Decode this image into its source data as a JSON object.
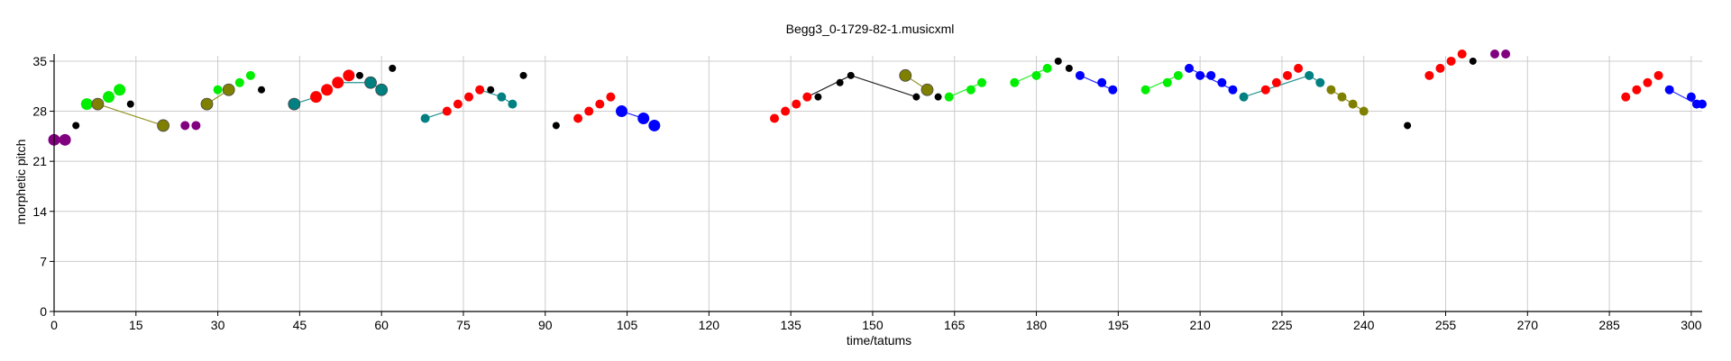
{
  "chart_data": {
    "type": "scatter",
    "title": "Begg3_0-1729-82-1.musicxml",
    "xlabel": "time/tatums",
    "ylabel": "morphetic pitch",
    "xlim": [
      0,
      302
    ],
    "ylim": [
      0,
      36
    ],
    "xticks": [
      0,
      15,
      30,
      45,
      60,
      75,
      90,
      105,
      120,
      135,
      150,
      165,
      180,
      195,
      210,
      225,
      240,
      255,
      270,
      285,
      300
    ],
    "yticks": [
      0,
      7,
      14,
      21,
      28,
      35
    ],
    "grid": true,
    "colors": {
      "purple": "#800080",
      "green": "#00ee00",
      "black": "#000000",
      "olive": "#808000",
      "red": "#ff0000",
      "teal": "#008080",
      "blue": "#0000ff"
    },
    "notes": [
      {
        "x": 0,
        "y": 24,
        "color": "purple",
        "size": "large"
      },
      {
        "x": 2,
        "y": 24,
        "color": "purple",
        "size": "large"
      },
      {
        "x": 4,
        "y": 26,
        "color": "black",
        "size": "small"
      },
      {
        "x": 6,
        "y": 29,
        "color": "green",
        "size": "large"
      },
      {
        "x": 8,
        "y": 29,
        "color": "olive",
        "size": "large"
      },
      {
        "x": 10,
        "y": 30,
        "color": "green",
        "size": "large"
      },
      {
        "x": 12,
        "y": 31,
        "color": "green",
        "size": "large"
      },
      {
        "x": 14,
        "y": 29,
        "color": "black",
        "size": "small"
      },
      {
        "x": 20,
        "y": 26,
        "color": "olive",
        "size": "large"
      },
      {
        "x": 24,
        "y": 26,
        "color": "purple",
        "size": "medium"
      },
      {
        "x": 26,
        "y": 26,
        "color": "purple",
        "size": "medium"
      },
      {
        "x": 28,
        "y": 29,
        "color": "olive",
        "size": "large"
      },
      {
        "x": 30,
        "y": 31,
        "color": "green",
        "size": "medium"
      },
      {
        "x": 32,
        "y": 31,
        "color": "olive",
        "size": "large"
      },
      {
        "x": 34,
        "y": 32,
        "color": "green",
        "size": "medium"
      },
      {
        "x": 36,
        "y": 33,
        "color": "green",
        "size": "medium"
      },
      {
        "x": 38,
        "y": 31,
        "color": "black",
        "size": "small"
      },
      {
        "x": 44,
        "y": 29,
        "color": "teal",
        "size": "large"
      },
      {
        "x": 48,
        "y": 30,
        "color": "red",
        "size": "large"
      },
      {
        "x": 50,
        "y": 31,
        "color": "red",
        "size": "large"
      },
      {
        "x": 52,
        "y": 32,
        "color": "red",
        "size": "large"
      },
      {
        "x": 54,
        "y": 33,
        "color": "red",
        "size": "large"
      },
      {
        "x": 56,
        "y": 33,
        "color": "black",
        "size": "small"
      },
      {
        "x": 58,
        "y": 32,
        "color": "teal",
        "size": "large"
      },
      {
        "x": 60,
        "y": 31,
        "color": "teal",
        "size": "large"
      },
      {
        "x": 62,
        "y": 34,
        "color": "black",
        "size": "small"
      },
      {
        "x": 68,
        "y": 27,
        "color": "teal",
        "size": "medium"
      },
      {
        "x": 72,
        "y": 28,
        "color": "red",
        "size": "medium"
      },
      {
        "x": 74,
        "y": 29,
        "color": "red",
        "size": "medium"
      },
      {
        "x": 76,
        "y": 30,
        "color": "red",
        "size": "medium"
      },
      {
        "x": 78,
        "y": 31,
        "color": "red",
        "size": "medium"
      },
      {
        "x": 80,
        "y": 31,
        "color": "black",
        "size": "small"
      },
      {
        "x": 82,
        "y": 30,
        "color": "teal",
        "size": "medium"
      },
      {
        "x": 84,
        "y": 29,
        "color": "teal",
        "size": "medium"
      },
      {
        "x": 86,
        "y": 33,
        "color": "black",
        "size": "small"
      },
      {
        "x": 92,
        "y": 26,
        "color": "black",
        "size": "small"
      },
      {
        "x": 96,
        "y": 27,
        "color": "red",
        "size": "medium"
      },
      {
        "x": 98,
        "y": 28,
        "color": "red",
        "size": "medium"
      },
      {
        "x": 100,
        "y": 29,
        "color": "red",
        "size": "medium"
      },
      {
        "x": 102,
        "y": 30,
        "color": "red",
        "size": "medium"
      },
      {
        "x": 104,
        "y": 28,
        "color": "blue",
        "size": "large"
      },
      {
        "x": 108,
        "y": 27,
        "color": "blue",
        "size": "large"
      },
      {
        "x": 110,
        "y": 26,
        "color": "blue",
        "size": "large"
      },
      {
        "x": 132,
        "y": 27,
        "color": "red",
        "size": "medium"
      },
      {
        "x": 134,
        "y": 28,
        "color": "red",
        "size": "medium"
      },
      {
        "x": 136,
        "y": 29,
        "color": "red",
        "size": "medium"
      },
      {
        "x": 138,
        "y": 30,
        "color": "red",
        "size": "medium"
      },
      {
        "x": 140,
        "y": 30,
        "color": "black",
        "size": "small"
      },
      {
        "x": 144,
        "y": 32,
        "color": "black",
        "size": "small"
      },
      {
        "x": 146,
        "y": 33,
        "color": "black",
        "size": "small"
      },
      {
        "x": 156,
        "y": 33,
        "color": "olive",
        "size": "large"
      },
      {
        "x": 158,
        "y": 30,
        "color": "black",
        "size": "small"
      },
      {
        "x": 160,
        "y": 31,
        "color": "olive",
        "size": "large"
      },
      {
        "x": 162,
        "y": 30,
        "color": "black",
        "size": "small"
      },
      {
        "x": 164,
        "y": 30,
        "color": "green",
        "size": "medium"
      },
      {
        "x": 168,
        "y": 31,
        "color": "green",
        "size": "medium"
      },
      {
        "x": 170,
        "y": 32,
        "color": "green",
        "size": "medium"
      },
      {
        "x": 176,
        "y": 32,
        "color": "green",
        "size": "medium"
      },
      {
        "x": 180,
        "y": 33,
        "color": "green",
        "size": "medium"
      },
      {
        "x": 182,
        "y": 34,
        "color": "green",
        "size": "medium"
      },
      {
        "x": 184,
        "y": 35,
        "color": "black",
        "size": "small"
      },
      {
        "x": 186,
        "y": 34,
        "color": "black",
        "size": "small"
      },
      {
        "x": 188,
        "y": 33,
        "color": "blue",
        "size": "medium"
      },
      {
        "x": 192,
        "y": 32,
        "color": "blue",
        "size": "medium"
      },
      {
        "x": 194,
        "y": 31,
        "color": "blue",
        "size": "medium"
      },
      {
        "x": 200,
        "y": 31,
        "color": "green",
        "size": "medium"
      },
      {
        "x": 204,
        "y": 32,
        "color": "green",
        "size": "medium"
      },
      {
        "x": 206,
        "y": 33,
        "color": "green",
        "size": "medium"
      },
      {
        "x": 208,
        "y": 34,
        "color": "blue",
        "size": "medium"
      },
      {
        "x": 210,
        "y": 33,
        "color": "blue",
        "size": "medium"
      },
      {
        "x": 212,
        "y": 33,
        "color": "blue",
        "size": "medium"
      },
      {
        "x": 214,
        "y": 32,
        "color": "blue",
        "size": "medium"
      },
      {
        "x": 216,
        "y": 31,
        "color": "blue",
        "size": "medium"
      },
      {
        "x": 218,
        "y": 30,
        "color": "teal",
        "size": "medium"
      },
      {
        "x": 222,
        "y": 31,
        "color": "red",
        "size": "medium"
      },
      {
        "x": 224,
        "y": 32,
        "color": "red",
        "size": "medium"
      },
      {
        "x": 226,
        "y": 33,
        "color": "red",
        "size": "medium"
      },
      {
        "x": 228,
        "y": 34,
        "color": "red",
        "size": "medium"
      },
      {
        "x": 230,
        "y": 33,
        "color": "teal",
        "size": "medium"
      },
      {
        "x": 232,
        "y": 32,
        "color": "teal",
        "size": "medium"
      },
      {
        "x": 234,
        "y": 31,
        "color": "olive",
        "size": "medium"
      },
      {
        "x": 236,
        "y": 30,
        "color": "olive",
        "size": "medium"
      },
      {
        "x": 238,
        "y": 29,
        "color": "olive",
        "size": "medium"
      },
      {
        "x": 240,
        "y": 28,
        "color": "olive",
        "size": "medium"
      },
      {
        "x": 248,
        "y": 26,
        "color": "black",
        "size": "small"
      },
      {
        "x": 252,
        "y": 33,
        "color": "red",
        "size": "medium"
      },
      {
        "x": 254,
        "y": 34,
        "color": "red",
        "size": "medium"
      },
      {
        "x": 256,
        "y": 35,
        "color": "red",
        "size": "medium"
      },
      {
        "x": 258,
        "y": 36,
        "color": "red",
        "size": "medium"
      },
      {
        "x": 260,
        "y": 35,
        "color": "black",
        "size": "small"
      },
      {
        "x": 264,
        "y": 36,
        "color": "purple",
        "size": "medium"
      },
      {
        "x": 266,
        "y": 36,
        "color": "purple",
        "size": "medium"
      },
      {
        "x": 288,
        "y": 30,
        "color": "red",
        "size": "medium"
      },
      {
        "x": 290,
        "y": 31,
        "color": "red",
        "size": "medium"
      },
      {
        "x": 292,
        "y": 32,
        "color": "red",
        "size": "medium"
      },
      {
        "x": 294,
        "y": 33,
        "color": "red",
        "size": "medium"
      },
      {
        "x": 296,
        "y": 31,
        "color": "blue",
        "size": "medium"
      },
      {
        "x": 300,
        "y": 30,
        "color": "blue",
        "size": "medium"
      },
      {
        "x": 301,
        "y": 29,
        "color": "blue",
        "size": "medium"
      },
      {
        "x": 302,
        "y": 29,
        "color": "blue",
        "size": "medium"
      }
    ],
    "links": [
      {
        "x1": 8,
        "y1": 29,
        "x2": 20,
        "y2": 26,
        "color": "olive"
      },
      {
        "x1": 28,
        "y1": 29,
        "x2": 32,
        "y2": 31,
        "color": "olive"
      },
      {
        "x1": 44,
        "y1": 29,
        "x2": 48,
        "y2": 30,
        "color": "teal"
      },
      {
        "x1": 52,
        "y1": 32,
        "x2": 58,
        "y2": 32,
        "color": "teal"
      },
      {
        "x1": 58,
        "y1": 32,
        "x2": 60,
        "y2": 31,
        "color": "teal"
      },
      {
        "x1": 68,
        "y1": 27,
        "x2": 72,
        "y2": 28,
        "color": "teal"
      },
      {
        "x1": 78,
        "y1": 31,
        "x2": 82,
        "y2": 30,
        "color": "teal"
      },
      {
        "x1": 82,
        "y1": 30,
        "x2": 84,
        "y2": 29,
        "color": "teal"
      },
      {
        "x1": 104,
        "y1": 28,
        "x2": 108,
        "y2": 27,
        "color": "blue"
      },
      {
        "x1": 138,
        "y1": 30,
        "x2": 146,
        "y2": 33,
        "color": "black"
      },
      {
        "x1": 146,
        "y1": 33,
        "x2": 158,
        "y2": 30,
        "color": "black"
      },
      {
        "x1": 156,
        "y1": 33,
        "x2": 160,
        "y2": 31,
        "color": "olive"
      },
      {
        "x1": 164,
        "y1": 30,
        "x2": 170,
        "y2": 32,
        "color": "green"
      },
      {
        "x1": 176,
        "y1": 32,
        "x2": 182,
        "y2": 34,
        "color": "green"
      },
      {
        "x1": 188,
        "y1": 33,
        "x2": 194,
        "y2": 31,
        "color": "blue"
      },
      {
        "x1": 200,
        "y1": 31,
        "x2": 206,
        "y2": 33,
        "color": "green"
      },
      {
        "x1": 208,
        "y1": 34,
        "x2": 216,
        "y2": 31,
        "color": "blue"
      },
      {
        "x1": 218,
        "y1": 30,
        "x2": 230,
        "y2": 33,
        "color": "teal"
      },
      {
        "x1": 230,
        "y1": 33,
        "x2": 232,
        "y2": 32,
        "color": "teal"
      },
      {
        "x1": 234,
        "y1": 31,
        "x2": 240,
        "y2": 28,
        "color": "olive"
      },
      {
        "x1": 296,
        "y1": 31,
        "x2": 301,
        "y2": 29,
        "color": "blue"
      }
    ]
  }
}
